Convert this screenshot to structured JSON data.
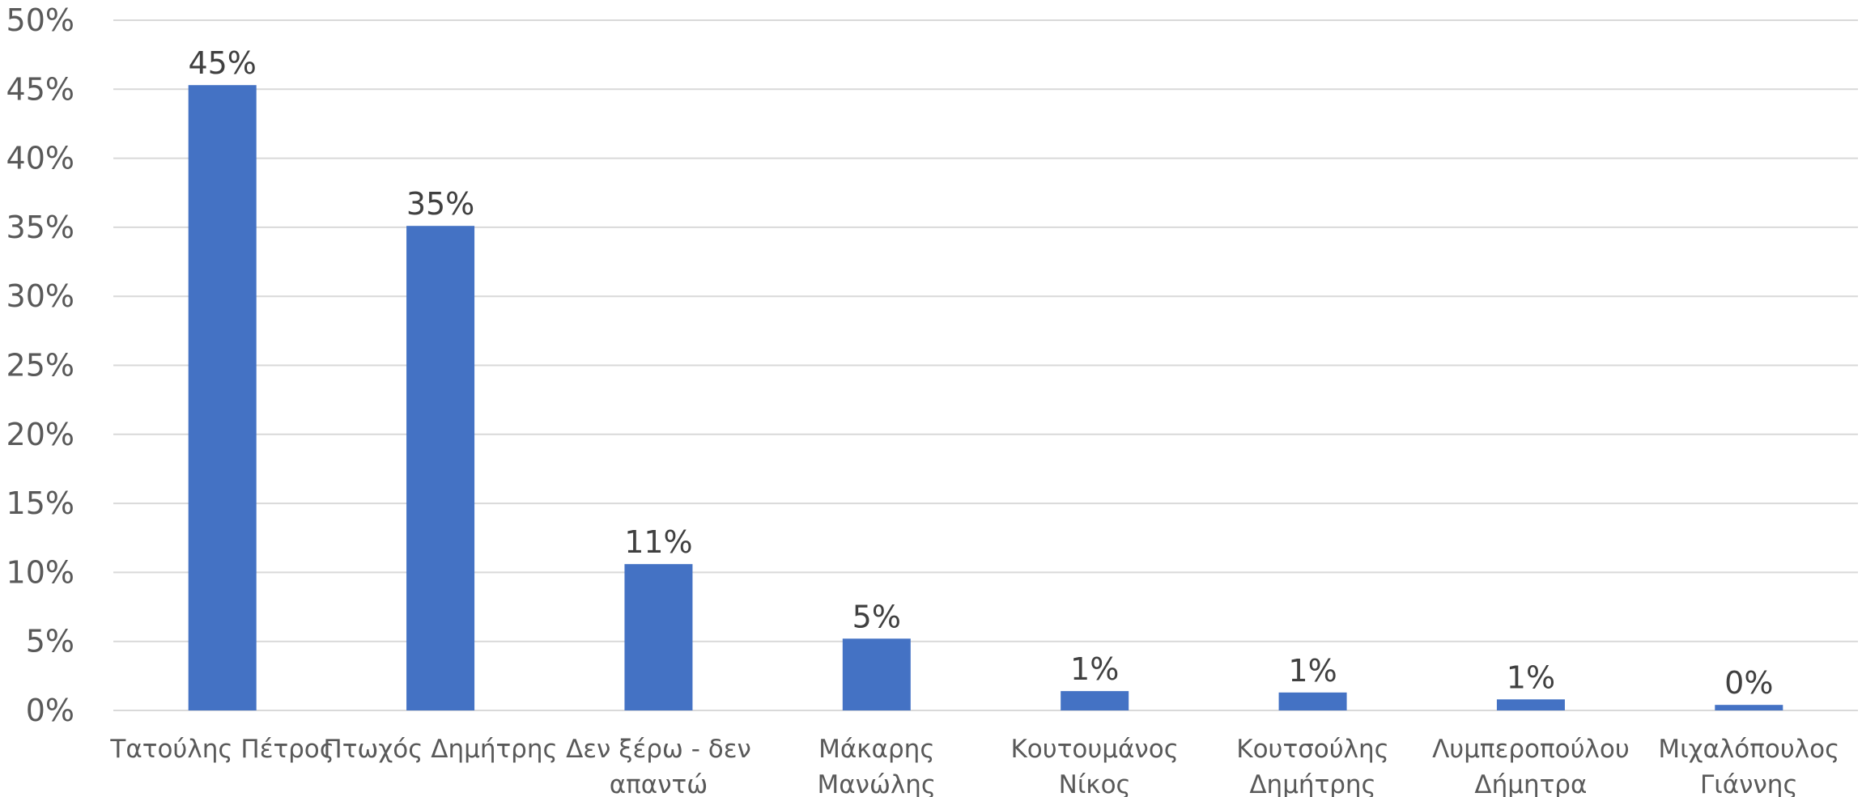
{
  "chart_data": {
    "type": "bar",
    "categories": [
      [
        "Τατούλης Πέτρος"
      ],
      [
        "Πτωχός Δημήτρης"
      ],
      [
        "Δεν ξέρω - δεν",
        "απαντώ"
      ],
      [
        "Μάκαρης",
        "Μανώλης"
      ],
      [
        "Κουτουμάνος",
        "Νίκος"
      ],
      [
        "Κουτσούλης",
        "Δημήτρης"
      ],
      [
        "Λυμπεροπούλου",
        "Δήμητρα"
      ],
      [
        "Μιχαλόπουλος",
        "Γιάννης"
      ]
    ],
    "values": [
      45.3,
      35.1,
      10.6,
      5.2,
      1.4,
      1.3,
      0.8,
      0.4
    ],
    "data_labels": [
      "45%",
      "35%",
      "11%",
      "5%",
      "1%",
      "1%",
      "1%",
      "0%"
    ],
    "y_ticks": [
      "0%",
      "5%",
      "10%",
      "15%",
      "20%",
      "25%",
      "30%",
      "35%",
      "40%",
      "45%",
      "50%"
    ],
    "ylim": [
      0,
      50
    ],
    "grid": true,
    "bar_color": "#4472C4",
    "title": "",
    "xlabel": "",
    "ylabel": ""
  }
}
